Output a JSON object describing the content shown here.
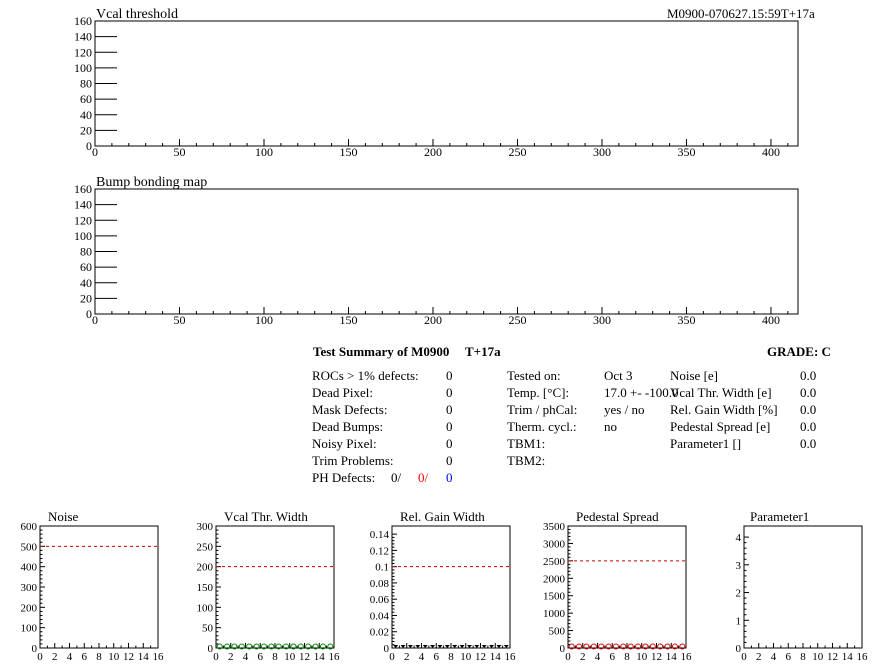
{
  "header": {
    "run_label": "M0900-070627.15:59T+17a"
  },
  "summary": {
    "title": "Test Summary of M0900",
    "temp_tag": "T+17a",
    "grade": "GRADE:  C",
    "defects": [
      {
        "label": "ROCs > 1% defects:",
        "value": "0"
      },
      {
        "label": "Dead Pixel:",
        "value": "0"
      },
      {
        "label": "Mask Defects:",
        "value": "0"
      },
      {
        "label": "Dead Bumps:",
        "value": "0"
      },
      {
        "label": "Noisy Pixel:",
        "value": "0"
      },
      {
        "label": "Trim Problems:",
        "value": "0"
      }
    ],
    "ph_defects": {
      "label": "PH Defects:",
      "v1": "0/",
      "v2": "0/",
      "v3": "0"
    },
    "conditions": [
      {
        "label": "Tested on:",
        "value": "Oct 3"
      },
      {
        "label": "Temp. [°C]:",
        "value": "17.0 +- -100.0"
      },
      {
        "label": "Trim / phCal:",
        "value": "yes / no"
      },
      {
        "label": "Therm. cycl.:",
        "value": "no"
      },
      {
        "label": "TBM1:",
        "value": ""
      },
      {
        "label": "TBM2:",
        "value": ""
      }
    ],
    "parameters": [
      {
        "label": "Noise [e]",
        "value": "0.0"
      },
      {
        "label": "Vcal Thr. Width [e]",
        "value": "0.0"
      },
      {
        "label": "Rel. Gain Width [%]",
        "value": "0.0"
      },
      {
        "label": "Pedestal Spread [e]",
        "value": "0.0"
      },
      {
        "label": "Parameter1 []",
        "value": "0.0"
      }
    ]
  },
  "colors": {
    "ref_line": "#cc0000",
    "green_marks": "#008800",
    "red_marks": "#dd0000",
    "black_marks": "#000000"
  },
  "chart_data": [
    {
      "id": "vcal-threshold",
      "type": "bar",
      "title": "Vcal threshold",
      "xlim": [
        0,
        416
      ],
      "ylim": [
        0,
        160
      ],
      "xticks": [
        0,
        50,
        100,
        150,
        200,
        250,
        300,
        350,
        400
      ],
      "yticks": [
        0,
        20,
        40,
        60,
        80,
        100,
        120,
        140,
        160
      ],
      "values": []
    },
    {
      "id": "bump-bonding-map",
      "type": "bar",
      "title": "Bump bonding map",
      "xlim": [
        0,
        416
      ],
      "ylim": [
        0,
        160
      ],
      "xticks": [
        0,
        50,
        100,
        150,
        200,
        250,
        300,
        350,
        400
      ],
      "yticks": [
        0,
        20,
        40,
        60,
        80,
        100,
        120,
        140,
        160
      ],
      "values": []
    },
    {
      "id": "noise",
      "type": "scatter",
      "title": "Noise",
      "xlim": [
        0,
        16
      ],
      "ylim": [
        0,
        600
      ],
      "xticks": [
        0,
        2,
        4,
        6,
        8,
        10,
        12,
        14,
        16
      ],
      "yticks": [
        0,
        100,
        200,
        300,
        400,
        500,
        600
      ],
      "ref_line": 500,
      "marks": "none",
      "x": [],
      "y": []
    },
    {
      "id": "vcal-thr-width",
      "type": "scatter",
      "title": "Vcal Thr. Width",
      "xlim": [
        0,
        16
      ],
      "ylim": [
        0,
        300
      ],
      "xticks": [
        0,
        2,
        4,
        6,
        8,
        10,
        12,
        14,
        16
      ],
      "yticks": [
        0,
        50,
        100,
        150,
        200,
        250,
        300
      ],
      "ref_line": 200,
      "marks": "green",
      "x": [
        0,
        1,
        2,
        3,
        4,
        5,
        6,
        7,
        8,
        9,
        10,
        11,
        12,
        13,
        14,
        15
      ],
      "y": [
        0,
        0,
        0,
        0,
        0,
        0,
        0,
        0,
        0,
        0,
        0,
        0,
        0,
        0,
        0,
        0
      ]
    },
    {
      "id": "rel-gain-width",
      "type": "scatter",
      "title": "Rel. Gain Width",
      "xlim": [
        0,
        16
      ],
      "ylim": [
        0,
        0.15
      ],
      "xticks": [
        0,
        2,
        4,
        6,
        8,
        10,
        12,
        14,
        16
      ],
      "yticks": [
        0,
        0.02,
        0.04,
        0.06,
        0.08,
        0.1,
        0.12,
        0.14
      ],
      "ytick_labels": [
        "0",
        "0.02",
        "0.04",
        "0.06",
        "0.08",
        "0.1",
        "0.12",
        "0.14"
      ],
      "ref_line": 0.1,
      "marks": "black",
      "x": [
        0,
        1,
        2,
        3,
        4,
        5,
        6,
        7,
        8,
        9,
        10,
        11,
        12,
        13,
        14,
        15
      ],
      "y": [
        0,
        0,
        0,
        0,
        0,
        0,
        0,
        0,
        0,
        0,
        0,
        0,
        0,
        0,
        0,
        0
      ]
    },
    {
      "id": "pedestal-spread",
      "type": "scatter",
      "title": "Pedestal Spread",
      "xlim": [
        0,
        16
      ],
      "ylim": [
        0,
        3500
      ],
      "xticks": [
        0,
        2,
        4,
        6,
        8,
        10,
        12,
        14,
        16
      ],
      "yticks": [
        0,
        500,
        1000,
        1500,
        2000,
        2500,
        3000,
        3500
      ],
      "ref_line": 2500,
      "marks": "red",
      "x": [
        0,
        1,
        2,
        3,
        4,
        5,
        6,
        7,
        8,
        9,
        10,
        11,
        12,
        13,
        14,
        15
      ],
      "y": [
        0,
        0,
        0,
        0,
        0,
        0,
        0,
        0,
        0,
        0,
        0,
        0,
        0,
        0,
        0,
        0
      ]
    },
    {
      "id": "parameter1",
      "type": "scatter",
      "title": "Parameter1",
      "xlim": [
        0,
        16
      ],
      "ylim": [
        0,
        4.4
      ],
      "xticks": [
        0,
        2,
        4,
        6,
        8,
        10,
        12,
        14,
        16
      ],
      "yticks": [
        0,
        1,
        2,
        3,
        4
      ],
      "marks": "none",
      "x": [],
      "y": []
    }
  ]
}
